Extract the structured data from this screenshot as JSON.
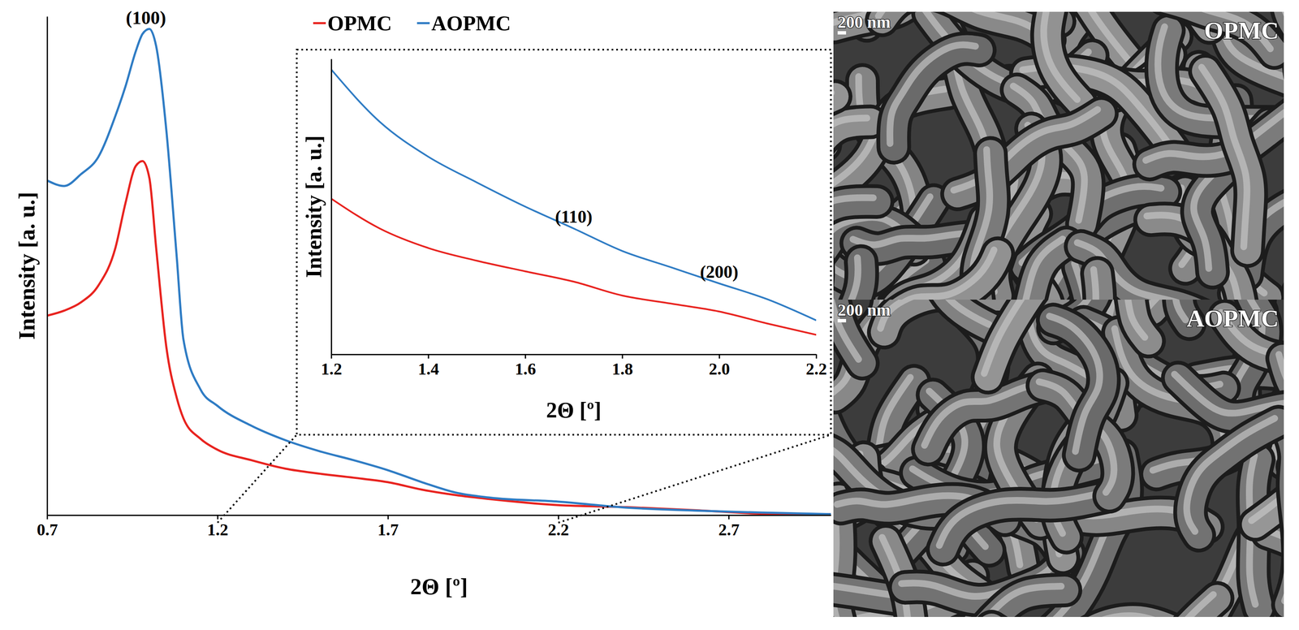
{
  "chart_data": [
    {
      "type": "line",
      "x_label": "2Θ [º]",
      "y_label": "Intensity [a. u.]",
      "x": [
        0.7,
        0.75,
        0.8,
        0.85,
        0.9,
        0.93,
        0.96,
        0.98,
        1.0,
        1.02,
        1.05,
        1.08,
        1.1,
        1.15,
        1.2,
        1.3,
        1.4,
        1.5,
        1.6,
        1.7,
        1.8,
        1.9,
        2.0,
        2.2,
        2.4,
        2.6,
        2.8,
        3.0
      ],
      "series": [
        {
          "name": "OPMC",
          "color": "#e8231f",
          "values": [
            40,
            41,
            42.7,
            46,
            53.5,
            62.6,
            70,
            71,
            67.6,
            53.5,
            33.6,
            23.6,
            19.4,
            15.3,
            13.1,
            11,
            9.3,
            8.3,
            7.5,
            6.6,
            5.1,
            4.0,
            3.2,
            2.0,
            1.6,
            1.0,
            0.3,
            0.2
          ]
        },
        {
          "name": "AOPMC",
          "color": "#2f7cc4",
          "values": [
            67.1,
            66.0,
            68.4,
            71.8,
            80,
            86,
            93,
            96.5,
            97.5,
            94,
            77,
            52,
            35.2,
            25.2,
            21.9,
            17.9,
            15,
            12.8,
            11,
            9,
            6.6,
            4.5,
            3.5,
            2.7,
            1.5,
            0.9,
            0.5,
            0.2
          ]
        }
      ],
      "xlim": [
        0.7,
        3.0
      ],
      "xticks": [
        0.7,
        1.2,
        1.7,
        2.2,
        2.7
      ],
      "ylim": [
        0,
        100
      ],
      "tick_labels": "x",
      "legend": "top",
      "annotations": [
        {
          "text": "(100)",
          "x": 0.99,
          "y": 97.5
        }
      ]
    },
    {
      "type": "line",
      "x_label": "2Θ [º]",
      "y_label": "Intensity [a. u.]",
      "x": [
        1.2,
        1.3,
        1.4,
        1.5,
        1.6,
        1.7,
        1.8,
        1.9,
        2.0,
        2.1,
        2.2
      ],
      "series": [
        {
          "name": "OPMC",
          "color": "#e8231f",
          "values": [
            52.7,
            42.6,
            36,
            31.7,
            28.1,
            24.6,
            19.9,
            17.2,
            14.5,
            10.4,
            6.6
          ]
        },
        {
          "name": "AOPMC",
          "color": "#2f7cc4",
          "values": [
            96.4,
            78.7,
            66.9,
            58.2,
            50,
            42.6,
            35,
            29.5,
            24,
            18.6,
            11.5
          ]
        }
      ],
      "xlim": [
        1.2,
        2.2
      ],
      "xticks": [
        1.2,
        1.4,
        1.6,
        1.8,
        {
          "value": 2,
          "label": "2.0"
        },
        2.2
      ],
      "ylim": [
        0,
        100
      ],
      "tick_labels": "x",
      "annotations": [
        {
          "text": "(110)",
          "x": 1.7,
          "y": 42.6
        },
        {
          "text": "(200)",
          "x": 2.0,
          "y": 24
        }
      ]
    }
  ],
  "images": [
    {
      "title": "OPMC",
      "scale_bar": "200 nm"
    },
    {
      "title": "AOPMC",
      "scale_bar": "200 nm"
    }
  ]
}
